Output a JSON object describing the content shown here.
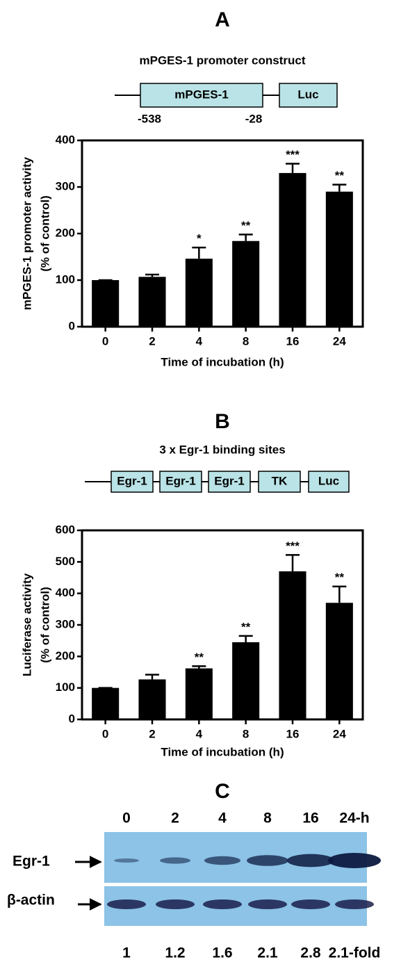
{
  "chart_data": [
    {
      "type": "bar",
      "title": "A",
      "categories": [
        "0",
        "2",
        "4",
        "8",
        "16",
        "24"
      ],
      "values": [
        100,
        107,
        146,
        184,
        330,
        290
      ],
      "errors": [
        0,
        5,
        24,
        14,
        20,
        15
      ],
      "significance": [
        null,
        null,
        "*",
        "**",
        "***",
        "**"
      ],
      "color": "#000000",
      "ylim": [
        0,
        400
      ],
      "yticks": [
        0,
        100,
        200,
        300,
        400
      ],
      "xlabel": "Time of incubation (h)",
      "ylabel": [
        "mPGES-1 promoter activity",
        "(% of control)"
      ]
    },
    {
      "type": "bar",
      "title": "B",
      "categories": [
        "0",
        "2",
        "4",
        "8",
        "16",
        "24"
      ],
      "values": [
        100,
        127,
        162,
        245,
        470,
        370
      ],
      "errors": [
        0,
        15,
        7,
        20,
        52,
        52
      ],
      "significance": [
        null,
        null,
        "**",
        "**",
        "***",
        "**"
      ],
      "color": "#000000",
      "ylim": [
        0,
        600
      ],
      "yticks": [
        0,
        100,
        200,
        300,
        400,
        500,
        600
      ],
      "xlabel": "Time of incubation (h)",
      "ylabel": [
        "Luciferase activity",
        "(% of control)"
      ]
    }
  ],
  "constructs": [
    {
      "title": "mPGES-1 promoter construct",
      "boxes": [
        "mPGES-1",
        "Luc"
      ],
      "positions": [
        "-538",
        "-28"
      ]
    },
    {
      "title": "3 x Egr-1 binding sites",
      "boxes": [
        "Egr-1",
        "Egr-1",
        "Egr-1",
        "TK",
        "Luc"
      ]
    }
  ],
  "blot": {
    "title": "C",
    "lanes": [
      "0",
      "2",
      "4",
      "8",
      "16",
      "24-h"
    ],
    "rows": [
      "Egr-1",
      "β-actin"
    ],
    "fold": [
      "1",
      "1.2",
      "1.6",
      "2.1",
      "2.8",
      "2.1-fold"
    ]
  }
}
